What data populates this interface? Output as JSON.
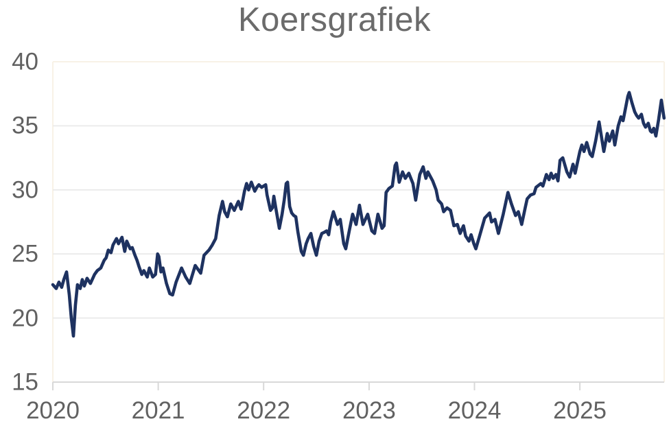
{
  "chart_data": {
    "type": "line",
    "title": "Koersgrafiek",
    "xlabel": "",
    "ylabel": "",
    "xlim": [
      2020,
      2025.8
    ],
    "ylim": [
      15,
      40
    ],
    "grid": "horizontal",
    "legend": "none",
    "x_tick_values": [
      2020,
      2021,
      2022,
      2023,
      2024,
      2025
    ],
    "x_tick_labels": [
      "2020",
      "2021",
      "2022",
      "2023",
      "2024",
      "2025"
    ],
    "y_tick_values": [
      40,
      35,
      30,
      25,
      20,
      15
    ],
    "y_tick_labels": [
      "40",
      "35",
      "30",
      "25",
      "20",
      "15"
    ],
    "colors": {
      "line": "#1e3260",
      "title_text": "#6b6b6b",
      "axis_text": "#616161",
      "gridline": "#e8e8e8",
      "axis_line": "#d8d8d8",
      "plot_border": "#f8f2e6"
    },
    "series": [
      {
        "name": "Koers",
        "points": [
          [
            2020.0,
            22.6
          ],
          [
            2020.032,
            22.3
          ],
          [
            2020.058,
            22.8
          ],
          [
            2020.084,
            22.4
          ],
          [
            2020.104,
            23.0
          ],
          [
            2020.13,
            23.6
          ],
          [
            2020.156,
            21.8
          ],
          [
            2020.175,
            20.0
          ],
          [
            2020.195,
            18.6
          ],
          [
            2020.214,
            21.0
          ],
          [
            2020.234,
            22.6
          ],
          [
            2020.26,
            22.3
          ],
          [
            2020.279,
            23.0
          ],
          [
            2020.299,
            22.5
          ],
          [
            2020.325,
            23.1
          ],
          [
            2020.357,
            22.7
          ],
          [
            2020.396,
            23.4
          ],
          [
            2020.422,
            23.7
          ],
          [
            2020.455,
            23.9
          ],
          [
            2020.487,
            24.5
          ],
          [
            2020.506,
            24.7
          ],
          [
            2020.526,
            25.3
          ],
          [
            2020.552,
            25.1
          ],
          [
            2020.571,
            25.7
          ],
          [
            2020.604,
            26.2
          ],
          [
            2020.623,
            25.8
          ],
          [
            2020.656,
            26.3
          ],
          [
            2020.682,
            25.2
          ],
          [
            2020.701,
            26.0
          ],
          [
            2020.734,
            25.4
          ],
          [
            2020.753,
            25.5
          ],
          [
            2020.779,
            24.9
          ],
          [
            2020.799,
            24.5
          ],
          [
            2020.818,
            24.0
          ],
          [
            2020.844,
            23.4
          ],
          [
            2020.864,
            23.7
          ],
          [
            2020.896,
            23.2
          ],
          [
            2020.916,
            23.9
          ],
          [
            2020.948,
            23.2
          ],
          [
            2020.974,
            23.4
          ],
          [
            2020.994,
            25.0
          ],
          [
            2021.006,
            24.8
          ],
          [
            2021.026,
            23.6
          ],
          [
            2021.045,
            23.9
          ],
          [
            2021.078,
            22.7
          ],
          [
            2021.11,
            21.9
          ],
          [
            2021.136,
            21.8
          ],
          [
            2021.169,
            22.8
          ],
          [
            2021.221,
            23.9
          ],
          [
            2021.26,
            23.2
          ],
          [
            2021.299,
            22.7
          ],
          [
            2021.351,
            24.1
          ],
          [
            2021.403,
            23.5
          ],
          [
            2021.435,
            24.9
          ],
          [
            2021.481,
            25.3
          ],
          [
            2021.513,
            25.7
          ],
          [
            2021.545,
            26.2
          ],
          [
            2021.578,
            28.0
          ],
          [
            2021.61,
            29.1
          ],
          [
            2021.63,
            28.3
          ],
          [
            2021.656,
            27.9
          ],
          [
            2021.688,
            28.9
          ],
          [
            2021.721,
            28.4
          ],
          [
            2021.76,
            29.1
          ],
          [
            2021.786,
            28.5
          ],
          [
            2021.818,
            29.9
          ],
          [
            2021.838,
            30.5
          ],
          [
            2021.857,
            30.0
          ],
          [
            2021.883,
            30.6
          ],
          [
            2021.916,
            29.9
          ],
          [
            2021.935,
            30.2
          ],
          [
            2021.955,
            30.4
          ],
          [
            2021.981,
            30.2
          ],
          [
            2022.0,
            30.3
          ],
          [
            2022.019,
            30.4
          ],
          [
            2022.032,
            29.6
          ],
          [
            2022.065,
            28.4
          ],
          [
            2022.084,
            28.6
          ],
          [
            2022.097,
            29.5
          ],
          [
            2022.117,
            28.5
          ],
          [
            2022.149,
            27.0
          ],
          [
            2022.175,
            28.1
          ],
          [
            2022.195,
            29.2
          ],
          [
            2022.214,
            30.5
          ],
          [
            2022.227,
            30.6
          ],
          [
            2022.247,
            28.7
          ],
          [
            2022.266,
            28.2
          ],
          [
            2022.286,
            28.0
          ],
          [
            2022.305,
            27.9
          ],
          [
            2022.325,
            26.7
          ],
          [
            2022.357,
            25.2
          ],
          [
            2022.377,
            24.9
          ],
          [
            2022.403,
            25.8
          ],
          [
            2022.422,
            26.2
          ],
          [
            2022.448,
            26.6
          ],
          [
            2022.474,
            25.6
          ],
          [
            2022.5,
            24.9
          ],
          [
            2022.526,
            26.0
          ],
          [
            2022.552,
            26.6
          ],
          [
            2022.578,
            26.7
          ],
          [
            2022.597,
            26.8
          ],
          [
            2022.617,
            26.5
          ],
          [
            2022.636,
            27.5
          ],
          [
            2022.662,
            28.3
          ],
          [
            2022.701,
            27.3
          ],
          [
            2022.727,
            27.7
          ],
          [
            2022.76,
            25.8
          ],
          [
            2022.779,
            25.4
          ],
          [
            2022.812,
            26.8
          ],
          [
            2022.844,
            28.1
          ],
          [
            2022.877,
            27.3
          ],
          [
            2022.909,
            28.8
          ],
          [
            2022.942,
            27.3
          ],
          [
            2022.987,
            28.1
          ],
          [
            2023.026,
            26.8
          ],
          [
            2023.052,
            26.6
          ],
          [
            2023.084,
            28.1
          ],
          [
            2023.123,
            27.0
          ],
          [
            2023.143,
            27.2
          ],
          [
            2023.162,
            29.8
          ],
          [
            2023.188,
            30.1
          ],
          [
            2023.221,
            30.3
          ],
          [
            2023.247,
            31.9
          ],
          [
            2023.26,
            32.1
          ],
          [
            2023.286,
            30.6
          ],
          [
            2023.318,
            31.4
          ],
          [
            2023.344,
            30.9
          ],
          [
            2023.377,
            31.3
          ],
          [
            2023.416,
            30.5
          ],
          [
            2023.442,
            29.2
          ],
          [
            2023.481,
            31.2
          ],
          [
            2023.513,
            31.8
          ],
          [
            2023.539,
            30.9
          ],
          [
            2023.558,
            31.4
          ],
          [
            2023.604,
            30.7
          ],
          [
            2023.636,
            30.0
          ],
          [
            2023.656,
            29.2
          ],
          [
            2023.688,
            28.9
          ],
          [
            2023.708,
            28.3
          ],
          [
            2023.74,
            28.6
          ],
          [
            2023.773,
            28.4
          ],
          [
            2023.805,
            27.2
          ],
          [
            2023.838,
            27.3
          ],
          [
            2023.864,
            26.6
          ],
          [
            2023.896,
            27.2
          ],
          [
            2023.916,
            26.4
          ],
          [
            2023.948,
            26.0
          ],
          [
            2023.968,
            26.5
          ],
          [
            2023.994,
            25.8
          ],
          [
            2024.013,
            25.4
          ],
          [
            2024.045,
            26.3
          ],
          [
            2024.097,
            27.8
          ],
          [
            2024.143,
            28.2
          ],
          [
            2024.162,
            27.5
          ],
          [
            2024.195,
            27.7
          ],
          [
            2024.227,
            26.6
          ],
          [
            2024.273,
            28.1
          ],
          [
            2024.318,
            29.8
          ],
          [
            2024.351,
            28.9
          ],
          [
            2024.39,
            28.0
          ],
          [
            2024.416,
            28.3
          ],
          [
            2024.448,
            27.3
          ],
          [
            2024.481,
            28.6
          ],
          [
            2024.5,
            29.3
          ],
          [
            2024.532,
            29.6
          ],
          [
            2024.565,
            29.7
          ],
          [
            2024.584,
            30.2
          ],
          [
            2024.63,
            30.5
          ],
          [
            2024.649,
            30.3
          ],
          [
            2024.682,
            31.2
          ],
          [
            2024.708,
            30.8
          ],
          [
            2024.727,
            31.3
          ],
          [
            2024.747,
            30.9
          ],
          [
            2024.773,
            31.2
          ],
          [
            2024.792,
            30.7
          ],
          [
            2024.812,
            32.3
          ],
          [
            2024.838,
            32.5
          ],
          [
            2024.877,
            31.4
          ],
          [
            2024.903,
            31.0
          ],
          [
            2024.935,
            32.0
          ],
          [
            2024.955,
            31.3
          ],
          [
            2025.0,
            33.0
          ],
          [
            2025.019,
            33.5
          ],
          [
            2025.039,
            33.0
          ],
          [
            2025.065,
            33.7
          ],
          [
            2025.097,
            32.8
          ],
          [
            2025.117,
            32.6
          ],
          [
            2025.149,
            33.8
          ],
          [
            2025.182,
            35.3
          ],
          [
            2025.227,
            33.0
          ],
          [
            2025.26,
            34.4
          ],
          [
            2025.279,
            33.8
          ],
          [
            2025.312,
            34.6
          ],
          [
            2025.331,
            33.5
          ],
          [
            2025.364,
            35.0
          ],
          [
            2025.39,
            35.7
          ],
          [
            2025.41,
            35.4
          ],
          [
            2025.455,
            37.3
          ],
          [
            2025.468,
            37.6
          ],
          [
            2025.494,
            36.8
          ],
          [
            2025.52,
            36.1
          ],
          [
            2025.539,
            35.8
          ],
          [
            2025.558,
            35.6
          ],
          [
            2025.584,
            35.9
          ],
          [
            2025.604,
            35.2
          ],
          [
            2025.623,
            34.9
          ],
          [
            2025.649,
            35.2
          ],
          [
            2025.669,
            34.6
          ],
          [
            2025.682,
            34.5
          ],
          [
            2025.701,
            34.8
          ],
          [
            2025.721,
            34.2
          ],
          [
            2025.747,
            35.5
          ],
          [
            2025.773,
            37.0
          ],
          [
            2025.786,
            36.3
          ],
          [
            2025.799,
            35.6
          ]
        ]
      }
    ]
  }
}
